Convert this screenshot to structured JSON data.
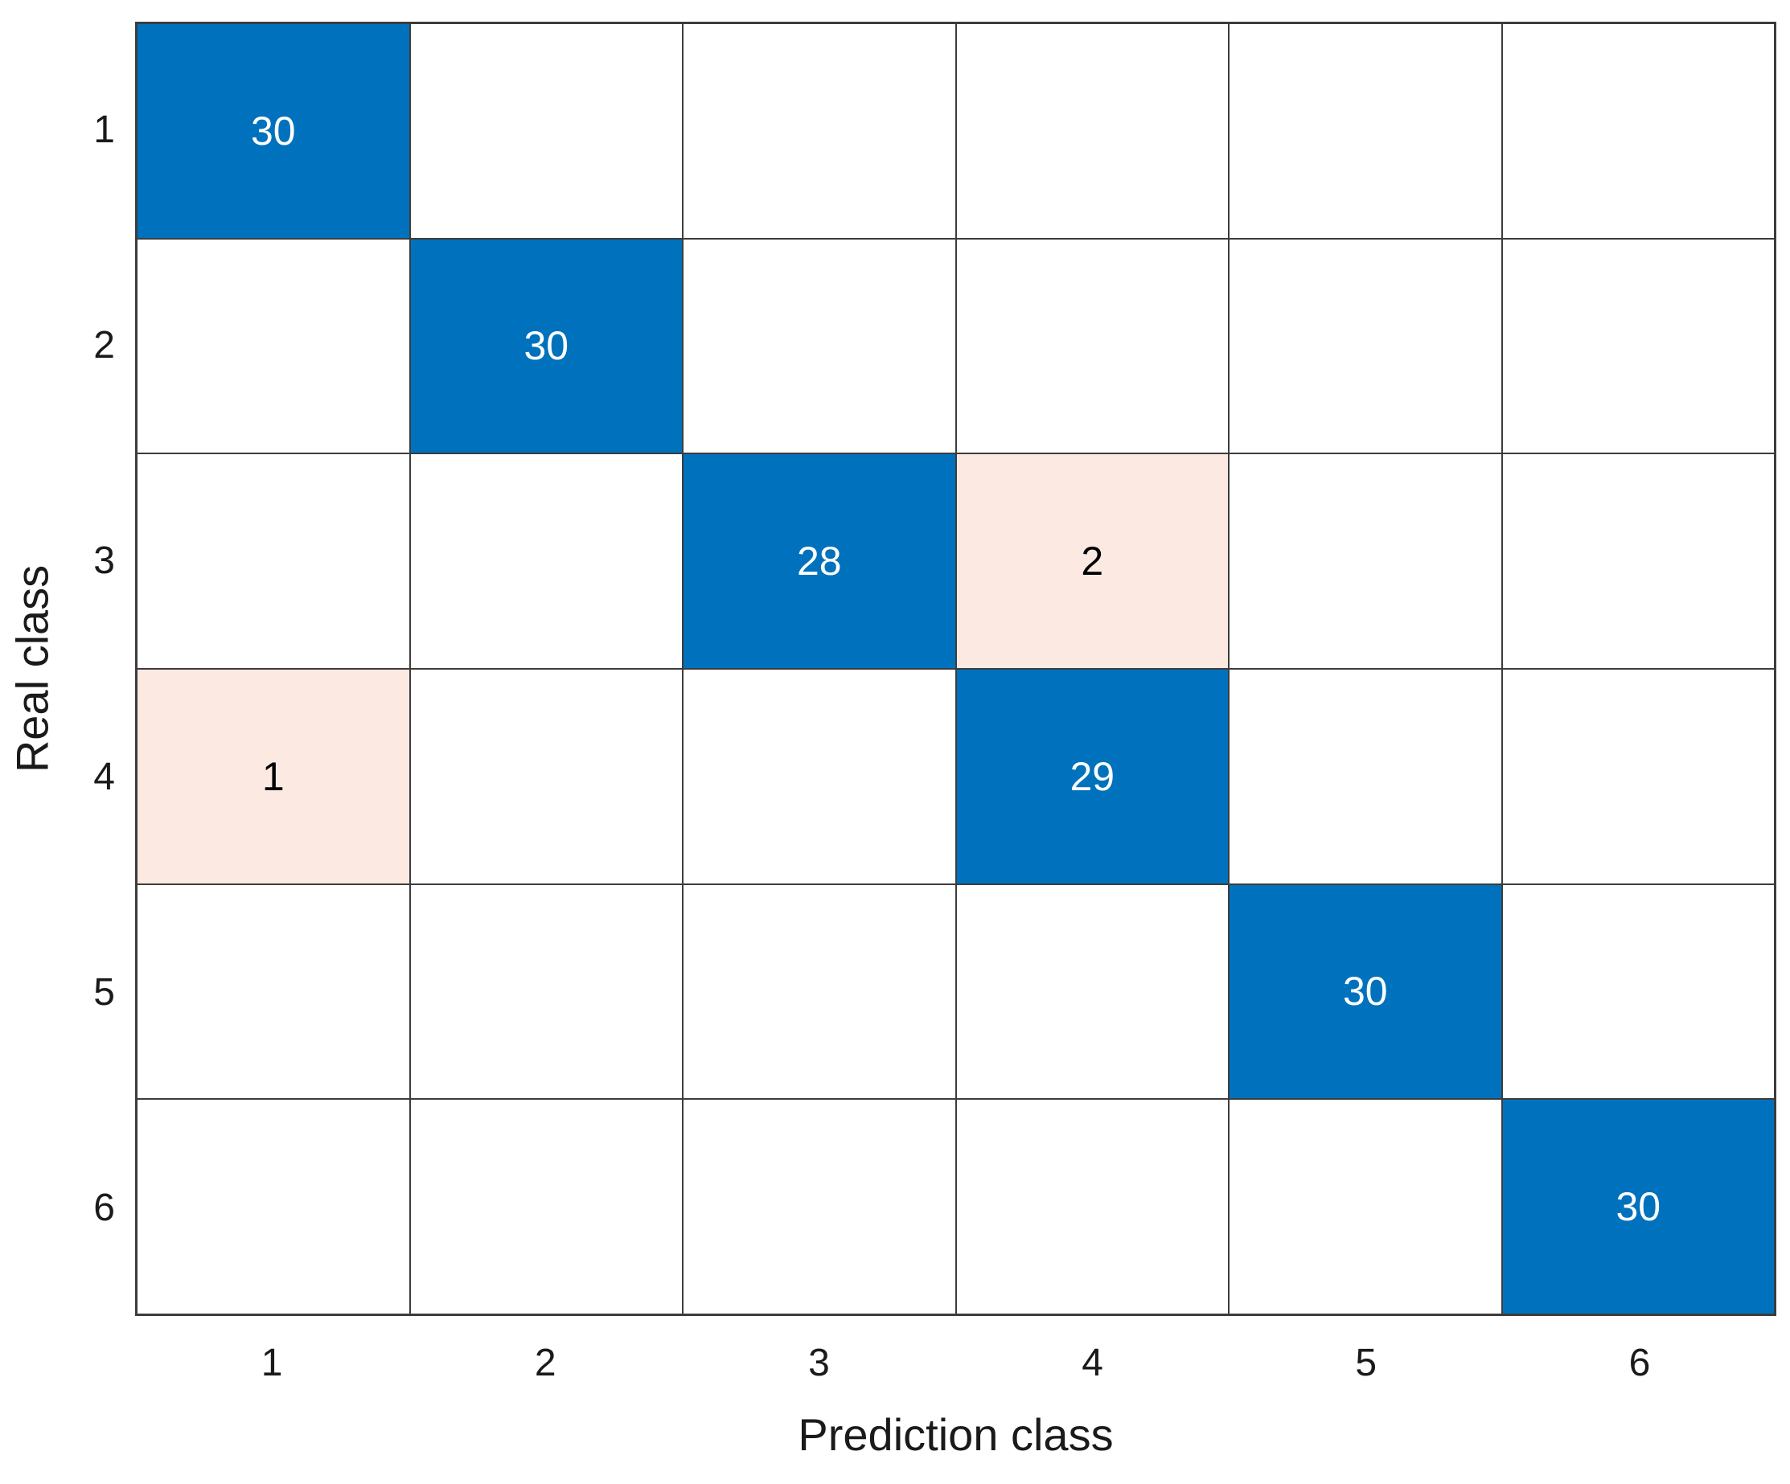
{
  "chart_data": {
    "type": "heatmap",
    "subtype": "confusion-matrix",
    "title": "",
    "xlabel": "Prediction class",
    "ylabel": "Real class",
    "x_tick_labels": [
      "1",
      "2",
      "3",
      "4",
      "5",
      "6"
    ],
    "y_tick_labels": [
      "1",
      "2",
      "3",
      "4",
      "5",
      "6"
    ],
    "matrix": [
      [
        30,
        0,
        0,
        0,
        0,
        0
      ],
      [
        0,
        30,
        0,
        0,
        0,
        0
      ],
      [
        0,
        0,
        28,
        2,
        0,
        0
      ],
      [
        1,
        0,
        0,
        29,
        0,
        0
      ],
      [
        0,
        0,
        0,
        0,
        30,
        0
      ],
      [
        0,
        0,
        0,
        0,
        0,
        30
      ]
    ],
    "zero_cells_shown_blank": true,
    "grid": "on",
    "legend_position": "none",
    "colors": {
      "diagonal_fill": "#0072BD",
      "offdiagonal_fill": "#FCEAE2",
      "empty_fill": "#FFFFFF",
      "diagonal_text": "#FFFFFF",
      "offdiagonal_text": "#000000",
      "grid_line": "#3C3C3C",
      "tick_text": "#1A1A1A"
    }
  }
}
